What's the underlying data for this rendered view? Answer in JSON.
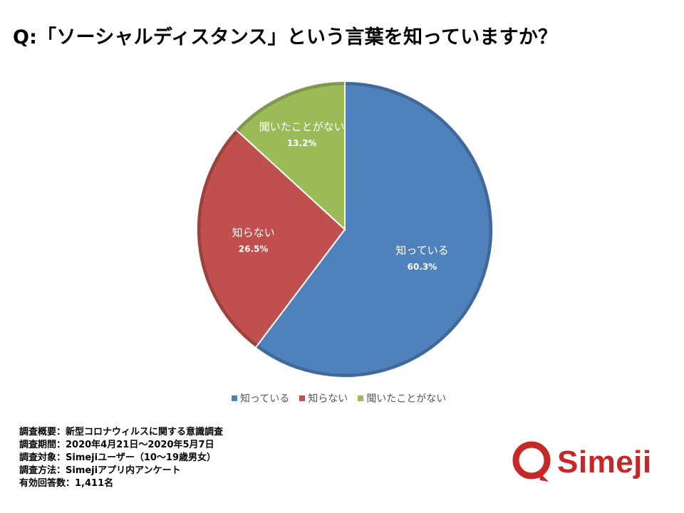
{
  "title": "Q:「ソーシャルディスタンス」という言葉を知っていますか？",
  "chart_data": {
    "type": "pie",
    "categories": [
      "知っている",
      "知らない",
      "聞いたことがない"
    ],
    "values": [
      60.3,
      26.5,
      13.2
    ],
    "value_labels": [
      "60.3%",
      "26.5%",
      "13.2%"
    ],
    "colors": [
      "#4f81bd",
      "#c0504d",
      "#9bbb59"
    ],
    "legend_position": "bottom"
  },
  "notes": [
    "調査概要：新型コロナウィルスに関する意識調査",
    "調査期間：2020年4月21日～2020年5月7日",
    "調査対象：Simejiユーザー（10～19歳男女）",
    "調査方法：Simejiアプリ内アンケート",
    "有効回答数：1,411名"
  ],
  "logo": {
    "text": "Simeji",
    "color": "#c62828"
  }
}
